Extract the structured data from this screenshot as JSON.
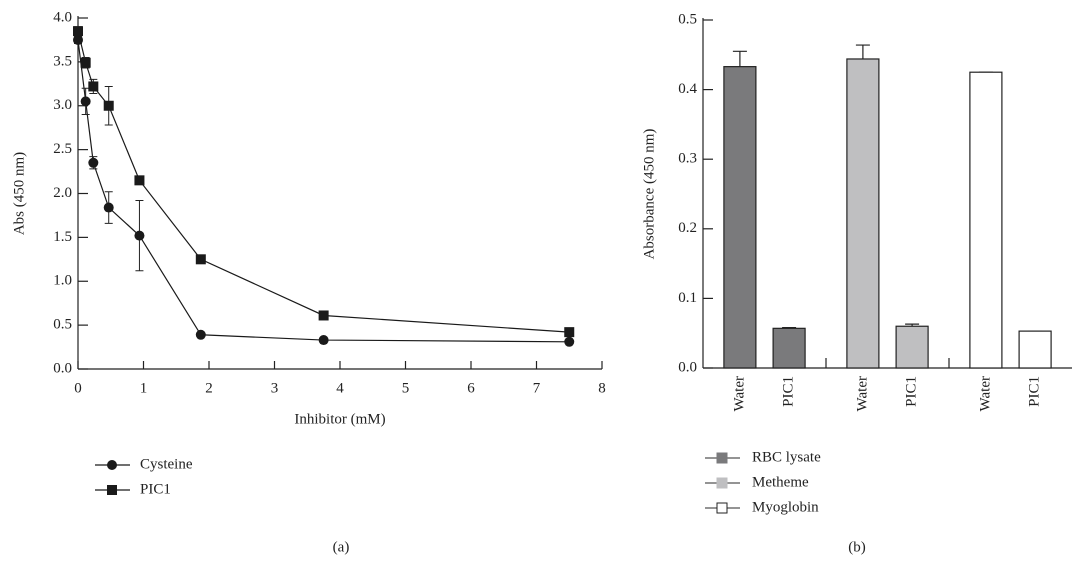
{
  "chart_data": [
    {
      "type": "line",
      "label": "(a)",
      "xlabel": "Inhibitor (mM)",
      "ylabel": "Abs (450 nm)",
      "x": [
        0,
        0.117,
        0.234,
        0.469,
        0.938,
        1.875,
        3.75,
        7.5
      ],
      "series": [
        {
          "name": "Cysteine",
          "marker": "circle",
          "color": "#1a1a1a",
          "values": [
            3.75,
            3.05,
            2.35,
            1.84,
            1.52,
            0.39,
            0.33,
            0.31
          ],
          "errors": [
            0.04,
            0.15,
            0.07,
            0.18,
            0.4,
            0.02,
            0.02,
            0.02
          ]
        },
        {
          "name": "PIC1",
          "marker": "square",
          "color": "#1a1a1a",
          "values": [
            3.85,
            3.49,
            3.22,
            3.0,
            2.15,
            1.25,
            0.61,
            0.42
          ],
          "errors": [
            0.05,
            0.06,
            0.08,
            0.22,
            0.03,
            0.03,
            0.02,
            0.02
          ]
        }
      ],
      "xlim": [
        0,
        8
      ],
      "xticks": [
        0,
        1,
        2,
        3,
        4,
        5,
        6,
        7,
        8
      ],
      "ylim": [
        0,
        4
      ],
      "yticks": [
        {
          "value": 0,
          "label": "0.0"
        },
        0.5,
        {
          "value": 1,
          "label": "1.0"
        },
        1.5,
        {
          "value": 2,
          "label": "2.0"
        },
        2.5,
        {
          "value": 3,
          "label": "3.0"
        },
        3.5,
        {
          "value": 4,
          "label": "4.0"
        }
      ]
    },
    {
      "type": "bar",
      "label": "(b)",
      "ylabel": "Absorbance (450 nm)",
      "categories": [
        "Water",
        "PIC1"
      ],
      "series": [
        {
          "name": "RBC lysate",
          "color": "#7a7a7c",
          "values": [
            0.433,
            0.057
          ],
          "errors": [
            0.022,
            0.001
          ]
        },
        {
          "name": "Metheme",
          "color": "#bfbfc1",
          "values": [
            0.444,
            0.06
          ],
          "errors": [
            0.02,
            0.003
          ]
        },
        {
          "name": "Myoglobin",
          "color": "#ffffff",
          "values": [
            0.425,
            0.053
          ],
          "errors": [
            0,
            0
          ]
        }
      ],
      "ylim": [
        0,
        0.5
      ],
      "yticks": [
        {
          "value": 0,
          "label": "0.0"
        },
        0.1,
        0.2,
        0.3,
        0.4,
        0.5
      ]
    }
  ]
}
